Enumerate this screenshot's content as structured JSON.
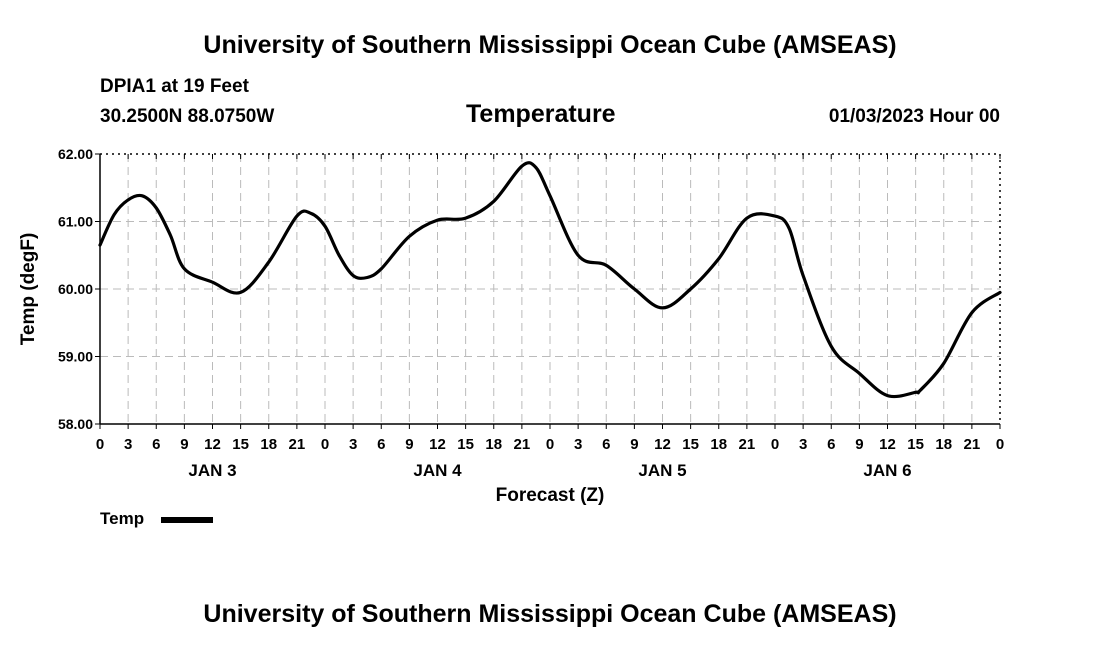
{
  "header": {
    "title": "University of Southern Mississippi Ocean Cube (AMSEAS)",
    "footer_title": "University of Southern Mississippi Ocean Cube (AMSEAS)",
    "station": "DPIA1 at 19 Feet",
    "coordinates": "30.2500N  88.0750W",
    "chart_title": "Temperature",
    "datetime": "01/03/2023 Hour 00"
  },
  "legend": {
    "label": "Temp"
  },
  "chart_data": {
    "type": "line",
    "title": "Temperature",
    "xlabel": "Forecast (Z)",
    "ylabel": "Temp (degF)",
    "xlim": [
      0,
      96
    ],
    "ylim": [
      58,
      62
    ],
    "yticks": [
      58,
      59,
      60,
      61,
      62
    ],
    "ytick_labels": [
      "58.00",
      "59.00",
      "60.00",
      "61.00",
      "62.00"
    ],
    "xtick_hours": [
      0,
      3,
      6,
      9,
      12,
      15,
      18,
      21,
      24,
      27,
      30,
      33,
      36,
      39,
      42,
      45,
      48,
      51,
      54,
      57,
      60,
      63,
      66,
      69,
      72,
      75,
      78,
      81,
      84,
      87,
      90,
      93,
      96
    ],
    "xtick_labels": [
      "0",
      "3",
      "6",
      "9",
      "12",
      "15",
      "18",
      "21",
      "0",
      "3",
      "6",
      "9",
      "12",
      "15",
      "18",
      "21",
      "0",
      "3",
      "6",
      "9",
      "12",
      "15",
      "18",
      "21",
      "0",
      "3",
      "6",
      "9",
      "12",
      "15",
      "18",
      "21",
      "0"
    ],
    "day_labels": [
      {
        "hour": 12,
        "label": "JAN 3"
      },
      {
        "hour": 36,
        "label": "JAN 4"
      },
      {
        "hour": 60,
        "label": "JAN 5"
      },
      {
        "hour": 84,
        "label": "JAN 6"
      }
    ],
    "grid": true,
    "legend_position": "bottom-left",
    "series": [
      {
        "name": "Temp",
        "color": "#000000",
        "x": [
          0,
          1.5,
          3,
          4.5,
          6,
          7.5,
          9,
          12,
          15,
          18,
          21,
          22.5,
          24,
          25.5,
          27,
          28.5,
          30,
          33,
          36,
          39,
          42,
          45,
          46.5,
          48,
          51,
          54,
          57,
          60,
          63,
          66,
          69,
          72,
          73.5,
          75,
          78,
          81,
          84,
          87,
          87.5,
          90,
          93,
          96
        ],
        "values": [
          60.65,
          61.1,
          61.32,
          61.38,
          61.2,
          60.8,
          60.3,
          60.1,
          59.95,
          60.4,
          61.08,
          61.12,
          60.93,
          60.5,
          60.2,
          60.17,
          60.3,
          60.78,
          61.02,
          61.05,
          61.3,
          61.82,
          61.8,
          61.38,
          60.5,
          60.35,
          60.0,
          59.72,
          60.0,
          60.45,
          61.05,
          61.08,
          60.9,
          60.2,
          59.15,
          58.75,
          58.42,
          58.47,
          58.5,
          58.9,
          59.65,
          59.95
        ]
      }
    ]
  }
}
